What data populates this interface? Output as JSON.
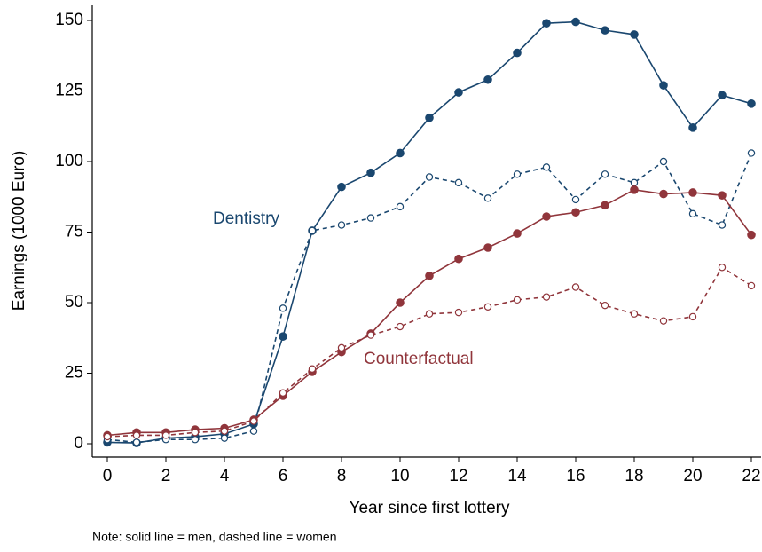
{
  "chart_data": {
    "type": "line",
    "x_label": "Year since first lottery",
    "y_label": "Earnings (1000 Euro)",
    "note": "Note: solid line = men, dashed line = women",
    "annotations": [
      "Dentistry",
      "Counterfactual"
    ],
    "x": [
      0,
      1,
      2,
      3,
      4,
      5,
      6,
      7,
      8,
      9,
      10,
      11,
      12,
      13,
      14,
      15,
      16,
      17,
      18,
      19,
      20,
      21,
      22
    ],
    "xlim": [
      0,
      22
    ],
    "xticks": [
      0,
      2,
      4,
      6,
      8,
      10,
      12,
      14,
      16,
      18,
      20,
      22
    ],
    "ylim": [
      0,
      150
    ],
    "yticks": [
      0,
      25,
      50,
      75,
      100,
      125,
      150
    ],
    "grid": false,
    "series": [
      {
        "color": "#1a476f",
        "dashed": false,
        "values": [
          0.5,
          0.3,
          2,
          2.5,
          3.5,
          7,
          38,
          75.5,
          91,
          96,
          103,
          115.5,
          124.5,
          129,
          138.5,
          149,
          149.5,
          146.5,
          145,
          127,
          112,
          123.5,
          120.5
        ]
      },
      {
        "color": "#1a476f",
        "dashed": true,
        "values": [
          1.5,
          0.5,
          1.5,
          1.5,
          2,
          4.5,
          48,
          75.5,
          77.5,
          80,
          84,
          94.5,
          92.5,
          87,
          95.5,
          98,
          86.5,
          95.5,
          92.5,
          100,
          81.5,
          77.5,
          103
        ]
      },
      {
        "color": "#90353b",
        "dashed": false,
        "values": [
          3,
          4,
          4,
          5,
          5.5,
          8.5,
          17,
          25.5,
          32.5,
          39,
          50,
          59.5,
          65.5,
          69.5,
          74.5,
          80.5,
          82,
          84.5,
          90,
          88.5,
          89,
          88,
          74
        ]
      },
      {
        "color": "#90353b",
        "dashed": true,
        "values": [
          2.5,
          3,
          3,
          4,
          4.5,
          8,
          18,
          26.5,
          34,
          38.5,
          41.5,
          46,
          46.5,
          48.5,
          51,
          52,
          55.5,
          49,
          46,
          43.5,
          45,
          62.5,
          56
        ]
      }
    ]
  }
}
